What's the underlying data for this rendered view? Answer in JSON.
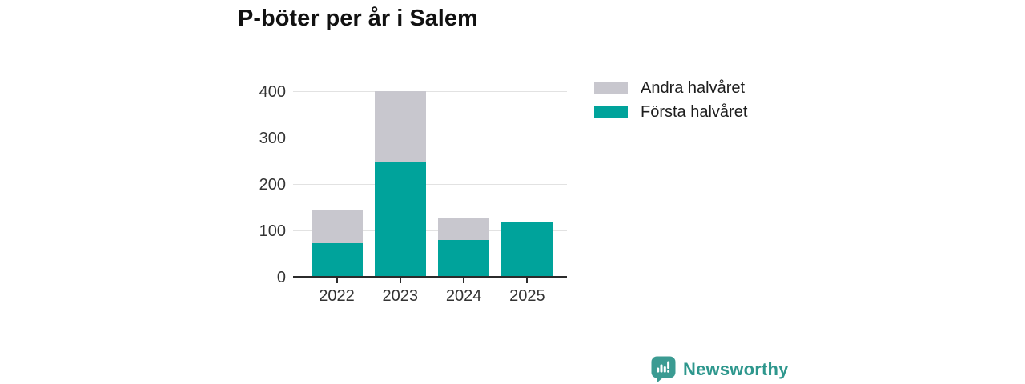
{
  "header": {
    "title": "P-böter per år i Salem"
  },
  "chart_data": {
    "type": "bar",
    "stacked": true,
    "title": "P-böter per år i Salem",
    "xlabel": "",
    "ylabel": "",
    "categories": [
      "2022",
      "2023",
      "2024",
      "2025"
    ],
    "series": [
      {
        "name": "Första halvåret",
        "color": "#00a39b",
        "values": [
          72,
          245,
          78,
          117
        ]
      },
      {
        "name": "Andra halvåret",
        "color": "#c8c7ce",
        "values": [
          70,
          155,
          49,
          0
        ]
      }
    ],
    "totals": [
      142,
      400,
      127,
      117
    ],
    "ylim": [
      0,
      400
    ],
    "yticks": [
      0,
      100,
      200,
      300,
      400
    ],
    "grid": true,
    "legend_position": "top-right"
  },
  "legend": {
    "items": [
      {
        "label": "Andra halvåret",
        "color": "#c8c7ce"
      },
      {
        "label": "Första halvåret",
        "color": "#00a39b"
      }
    ]
  },
  "footer": {
    "brand": "Newsworthy",
    "brand_color": "#2e978d",
    "logo_icon": "bar-chart-speech-bubble-icon",
    "logo_icon_color": "#3b9b92"
  },
  "colors": {
    "bar_teal": "#00a39b",
    "bar_gray": "#c8c7ce",
    "gridline": "#e2e2e2",
    "axis": "#2b2b2b",
    "tick_text": "#333333",
    "title_text": "#111111",
    "legend_text": "#1d1d1d",
    "background": "#ffffff"
  }
}
